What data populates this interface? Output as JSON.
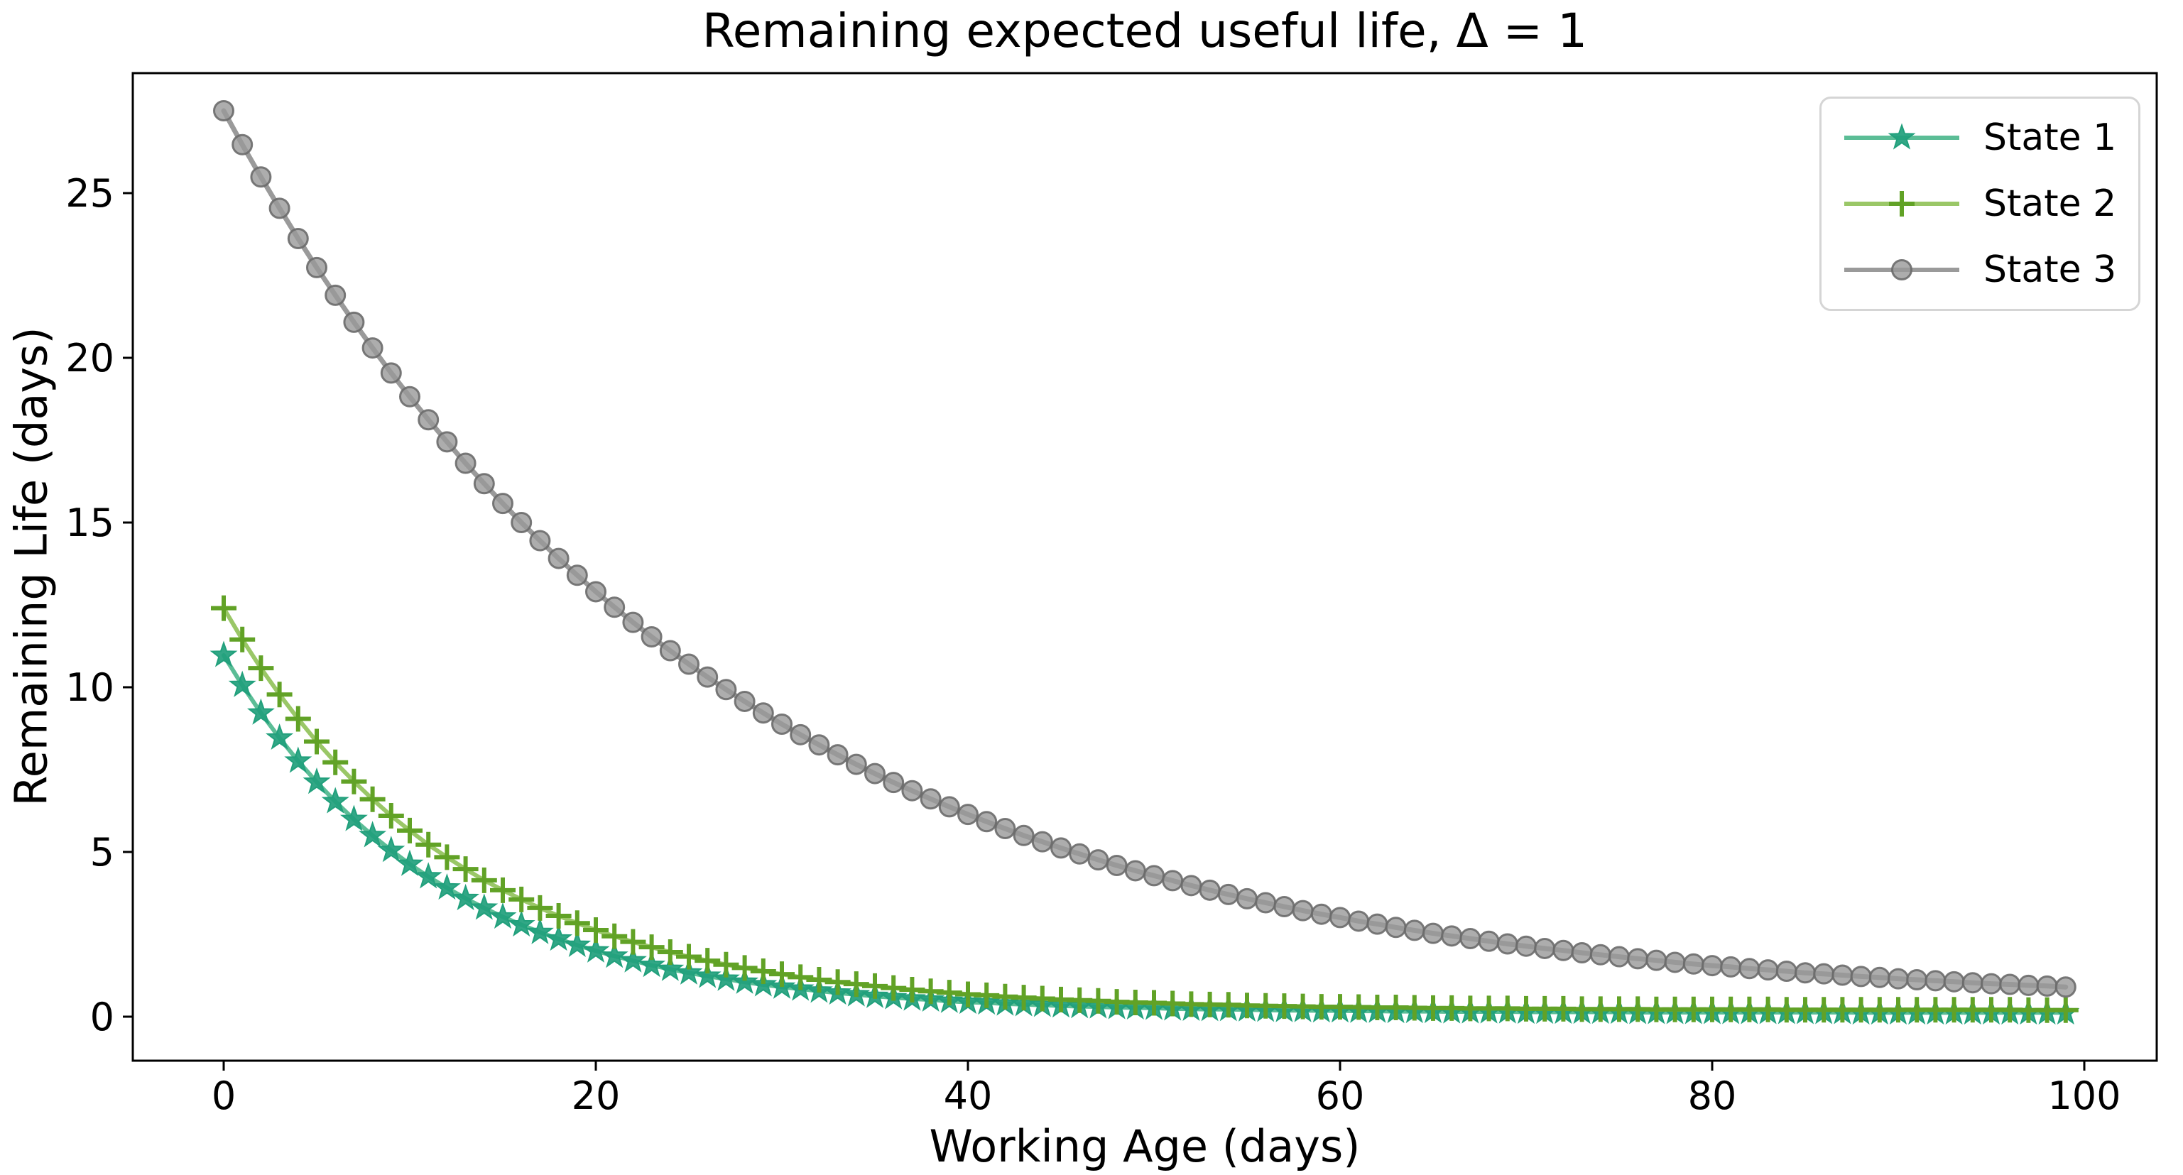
{
  "title": "Remaining expected useful life, Δ = 1",
  "axes": {
    "xlabel": "Working Age (days)",
    "ylabel": "Remaining Life (days)",
    "x_ticks": [
      0,
      20,
      40,
      60,
      80,
      100
    ],
    "y_ticks": [
      0,
      5,
      10,
      15,
      20,
      25
    ],
    "x_range": [
      -4.9,
      103.9
    ],
    "y_range": [
      -1.33,
      28.6
    ],
    "grid": false,
    "spine_color": "#000000"
  },
  "legend": {
    "position": "top-right",
    "border_color": "#d5d5d5",
    "entries": [
      {
        "label": "State 1",
        "marker": "star"
      },
      {
        "label": "State 2",
        "marker": "plus"
      },
      {
        "label": "State 3",
        "marker": "circle"
      }
    ]
  },
  "chart_data": {
    "type": "line",
    "title": "Remaining expected useful life, Δ = 1",
    "xlabel": "Working Age (days)",
    "ylabel": "Remaining Life (days)",
    "xlim": [
      -4.9,
      103.9
    ],
    "ylim": [
      -1.33,
      28.6
    ],
    "legend_position": "upper right",
    "x_values": [
      0,
      1,
      2,
      3,
      4,
      5,
      6,
      7,
      8,
      9,
      10,
      11,
      12,
      13,
      14,
      15,
      16,
      17,
      18,
      19,
      20,
      21,
      22,
      23,
      24,
      25,
      26,
      27,
      28,
      29,
      30,
      31,
      32,
      33,
      34,
      35,
      36,
      37,
      38,
      39,
      40,
      41,
      42,
      43,
      44,
      45,
      46,
      47,
      48,
      49,
      50,
      51,
      52,
      53,
      54,
      55,
      56,
      57,
      58,
      59,
      60,
      61,
      62,
      63,
      64,
      65,
      66,
      67,
      68,
      69,
      70,
      71,
      72,
      73,
      74,
      75,
      76,
      77,
      78,
      79,
      80,
      81,
      82,
      83,
      84,
      85,
      86,
      87,
      88,
      89,
      90,
      91,
      92,
      93,
      94,
      95,
      96,
      97,
      98,
      99
    ],
    "series": [
      {
        "name": "State 1",
        "marker": "star",
        "line_color": "#5bbd96",
        "marker_color": "#21a07c",
        "values": [
          10.97,
          10.06,
          9.22,
          8.46,
          7.76,
          7.12,
          6.53,
          5.99,
          5.5,
          5.05,
          4.63,
          4.25,
          3.91,
          3.59,
          3.3,
          3.03,
          2.79,
          2.56,
          2.36,
          2.17,
          2.0,
          1.84,
          1.7,
          1.56,
          1.44,
          1.33,
          1.23,
          1.14,
          1.05,
          0.97,
          0.9,
          0.84,
          0.78,
          0.72,
          0.67,
          0.62,
          0.58,
          0.54,
          0.51,
          0.47,
          0.44,
          0.42,
          0.39,
          0.37,
          0.35,
          0.33,
          0.31,
          0.3,
          0.28,
          0.27,
          0.26,
          0.24,
          0.23,
          0.22,
          0.22,
          0.21,
          0.2,
          0.19,
          0.19,
          0.18,
          0.18,
          0.17,
          0.17,
          0.16,
          0.16,
          0.16,
          0.15,
          0.15,
          0.15,
          0.15,
          0.14,
          0.14,
          0.14,
          0.14,
          0.14,
          0.14,
          0.13,
          0.13,
          0.13,
          0.13,
          0.13,
          0.13,
          0.13,
          0.13,
          0.13,
          0.13,
          0.13,
          0.13,
          0.12,
          0.12,
          0.12,
          0.12,
          0.12,
          0.12,
          0.12,
          0.12,
          0.12,
          0.12,
          0.12,
          0.12
        ]
      },
      {
        "name": "State 2",
        "marker": "plus",
        "line_color": "#9ac767",
        "marker_color": "#61a226",
        "values": [
          12.4,
          11.45,
          10.58,
          9.78,
          9.04,
          8.35,
          7.72,
          7.14,
          6.6,
          6.1,
          5.65,
          5.22,
          4.84,
          4.48,
          4.14,
          3.84,
          3.56,
          3.3,
          3.06,
          2.84,
          2.63,
          2.44,
          2.27,
          2.11,
          1.96,
          1.82,
          1.7,
          1.58,
          1.48,
          1.38,
          1.29,
          1.2,
          1.12,
          1.05,
          0.99,
          0.93,
          0.87,
          0.82,
          0.77,
          0.73,
          0.68,
          0.65,
          0.61,
          0.58,
          0.55,
          0.52,
          0.5,
          0.48,
          0.45,
          0.43,
          0.42,
          0.4,
          0.38,
          0.37,
          0.36,
          0.34,
          0.33,
          0.32,
          0.31,
          0.3,
          0.3,
          0.29,
          0.28,
          0.28,
          0.27,
          0.26,
          0.26,
          0.25,
          0.25,
          0.25,
          0.24,
          0.24,
          0.24,
          0.23,
          0.23,
          0.23,
          0.23,
          0.22,
          0.22,
          0.22,
          0.22,
          0.22,
          0.22,
          0.22,
          0.21,
          0.21,
          0.21,
          0.21,
          0.21,
          0.21,
          0.21,
          0.21,
          0.21,
          0.21,
          0.21,
          0.21,
          0.21,
          0.2,
          0.2,
          0.2
        ]
      },
      {
        "name": "State 3",
        "marker": "circle",
        "line_color": "#9a9a9a",
        "marker_color": "#999999",
        "marker_edge_color": "#6b6b6b",
        "values": [
          27.5,
          26.47,
          25.49,
          24.54,
          23.62,
          22.74,
          21.9,
          21.08,
          20.3,
          19.54,
          18.82,
          18.12,
          17.45,
          16.8,
          16.18,
          15.58,
          15.0,
          14.45,
          13.91,
          13.4,
          12.9,
          12.43,
          11.97,
          11.53,
          11.11,
          10.7,
          10.31,
          9.93,
          9.57,
          9.22,
          8.88,
          8.56,
          8.25,
          7.95,
          7.66,
          7.38,
          7.11,
          6.86,
          6.61,
          6.37,
          6.14,
          5.92,
          5.71,
          5.5,
          5.31,
          5.12,
          4.94,
          4.76,
          4.59,
          4.43,
          4.28,
          4.13,
          3.98,
          3.84,
          3.71,
          3.58,
          3.46,
          3.34,
          3.22,
          3.11,
          3.01,
          2.9,
          2.81,
          2.71,
          2.62,
          2.53,
          2.45,
          2.37,
          2.29,
          2.21,
          2.14,
          2.07,
          2.01,
          1.94,
          1.88,
          1.82,
          1.76,
          1.71,
          1.65,
          1.6,
          1.55,
          1.51,
          1.46,
          1.42,
          1.38,
          1.33,
          1.3,
          1.26,
          1.22,
          1.19,
          1.15,
          1.12,
          1.09,
          1.06,
          1.03,
          1.0,
          0.98,
          0.95,
          0.93,
          0.9
        ]
      }
    ]
  }
}
